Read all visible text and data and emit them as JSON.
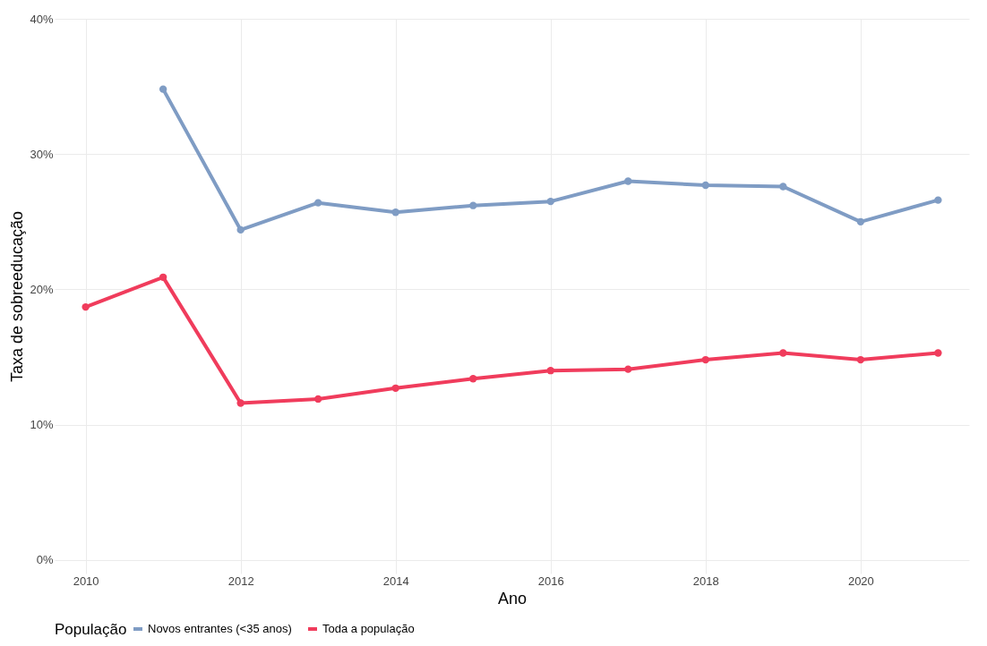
{
  "chart_data": {
    "type": "line",
    "xlabel": "Ano",
    "ylabel": "Taxa de sobreeducação",
    "legend_title": "População",
    "legend": "bottom",
    "grid": true,
    "marker": "circle",
    "line_style": "solid",
    "x": [
      2010,
      2011,
      2012,
      2013,
      2014,
      2015,
      2016,
      2017,
      2018,
      2019,
      2020,
      2021
    ],
    "xlim": [
      2009.6,
      2021.4
    ],
    "xticks": [
      2010,
      2012,
      2014,
      2016,
      2018,
      2020
    ],
    "ylim": [
      -1,
      40
    ],
    "yticks": [
      {
        "value": 0,
        "label": "0%"
      },
      {
        "value": 10,
        "label": "10%"
      },
      {
        "value": 20,
        "label": "20%"
      },
      {
        "value": 30,
        "label": "30%"
      },
      {
        "value": 40,
        "label": "40%"
      }
    ],
    "series": [
      {
        "name": "Novos entrantes (<35 anos)",
        "color": "#7f9cc4",
        "values": [
          null,
          34.8,
          24.4,
          26.4,
          25.7,
          26.2,
          26.5,
          28.0,
          27.7,
          27.6,
          25.0,
          26.6
        ]
      },
      {
        "name": "Toda a população",
        "color": "#f03c5c",
        "values": [
          18.7,
          20.9,
          11.6,
          11.9,
          12.7,
          13.4,
          14.0,
          14.1,
          14.8,
          15.3,
          14.8,
          15.3
        ]
      }
    ]
  }
}
